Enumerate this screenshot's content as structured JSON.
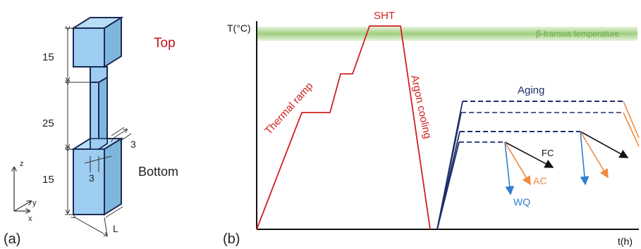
{
  "panel_a": {
    "label": "(a)",
    "top_label": "Top",
    "bottom_label": "Bottom",
    "dimensions": {
      "top_height": "15",
      "gauge_length": "25",
      "bottom_height": "15",
      "gauge_thickness": "3",
      "gauge_width": "3",
      "length": "L"
    },
    "axes": {
      "z": "z",
      "y": "y",
      "x": "x"
    }
  },
  "panel_b": {
    "label": "(b)",
    "y_axis_label": "T(°C)",
    "x_axis_label": "t(h)",
    "transus_label": "β-transus temperature",
    "sht_label": "SHT",
    "ramp_label": "Thermal ramp",
    "argon_label": "Argon cooling",
    "aging_label": "Aging",
    "cooling_labels": {
      "fc": "FC",
      "ac": "AC",
      "wq": "WQ"
    }
  },
  "colors": {
    "specimen_fill": "#9dcdf0",
    "specimen_edge": "#1c2a55",
    "red": "#d02020",
    "navy": "#1f2d6b",
    "orange": "#f08a3c",
    "blue": "#2f7fd0",
    "black": "#111111",
    "transus_band": "#b9dca0",
    "transus_text": "#6aa84f"
  }
}
